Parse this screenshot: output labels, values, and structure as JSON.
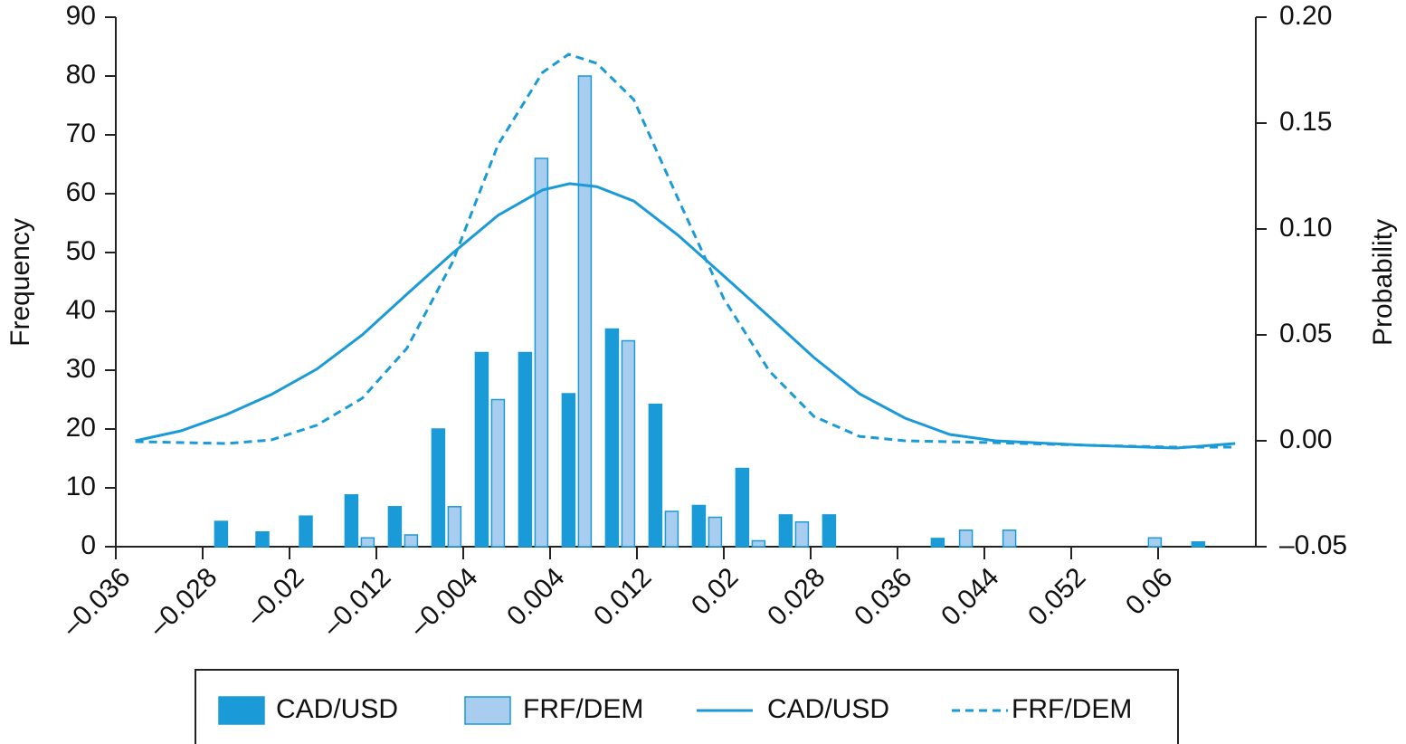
{
  "chart_data": {
    "type": "bar_line",
    "ylabel": "Frequency",
    "y2label": "Probability",
    "xlim": [
      -0.036,
      0.069
    ],
    "xticks": [
      {
        "value": -0.036,
        "label": "–0.036"
      },
      {
        "value": -0.028,
        "label": "–0.028"
      },
      {
        "value": -0.02,
        "label": "–0.02"
      },
      {
        "value": -0.012,
        "label": "–0.012"
      },
      {
        "value": -0.004,
        "label": "–0.004"
      },
      0.004,
      0.012,
      0.02,
      0.028,
      0.036,
      0.044,
      0.052,
      0.06
    ],
    "ylim": [
      0,
      90
    ],
    "yticks": [
      0,
      10,
      20,
      30,
      40,
      50,
      60,
      70,
      80,
      90
    ],
    "y2lim": [
      -0.05,
      0.2
    ],
    "y2ticks": [
      {
        "value": -0.05,
        "label": "–0.05"
      },
      {
        "value": 0,
        "label": "0.00"
      },
      {
        "value": 0.05,
        "label": "0.05"
      },
      {
        "value": 0.1,
        "label": "0.10"
      },
      {
        "value": 0.15,
        "label": "0.15"
      },
      {
        "value": 0.2,
        "label": "0.20"
      }
    ],
    "series": [
      {
        "name": "CAD/USD",
        "kind": "bar",
        "color": "#1a9ad6",
        "x": [
          -0.0263,
          -0.0225,
          -0.0185,
          -0.0143,
          -0.0103,
          -0.0063,
          -0.0023,
          0.0017,
          0.0057,
          0.0097,
          0.0137,
          0.0177,
          0.0217,
          0.0257,
          0.0297,
          0.0397,
          0.0637
        ],
        "values": [
          4.3,
          2.5,
          5.2,
          8.8,
          6.8,
          20,
          33,
          33,
          26,
          37,
          24.2,
          7,
          13.3,
          5.4,
          5.4,
          1.4,
          0.8
        ]
      },
      {
        "name": "FRF/DEM",
        "kind": "bar",
        "color": "#a9cdef",
        "x": [
          -0.0128,
          -0.0088,
          -0.0048,
          -0.0008,
          0.0032,
          0.0072,
          0.0112,
          0.0152,
          0.0192,
          0.0232,
          0.0272,
          0.0423,
          0.0463,
          0.0597
        ],
        "values": [
          1.5,
          2,
          6.8,
          25,
          66,
          80,
          35,
          6,
          5,
          1,
          4.2,
          2.8,
          2.8,
          1.5
        ]
      },
      {
        "name": "CAD/USD",
        "kind": "line",
        "axis": "y2",
        "color": "#1a9ad6",
        "x": [
          -0.0342,
          -0.03,
          -0.0258,
          -0.0217,
          -0.0175,
          -0.0133,
          -0.0092,
          -0.005,
          -0.0008,
          0.0033,
          0.0058,
          0.0083,
          0.0117,
          0.0158,
          0.02,
          0.0242,
          0.0283,
          0.0325,
          0.0367,
          0.0408,
          0.045,
          0.0533,
          0.0617,
          0.0671
        ],
        "values": [
          0,
          0.0047,
          0.0124,
          0.0218,
          0.0338,
          0.05,
          0.0692,
          0.0885,
          0.1064,
          0.1184,
          0.1214,
          0.12,
          0.1132,
          0.097,
          0.0778,
          0.0585,
          0.0393,
          0.0222,
          0.0107,
          0.003,
          0,
          -0.0021,
          -0.0034,
          -0.0013
        ]
      },
      {
        "name": "FRF/DEM",
        "kind": "line",
        "dashed": true,
        "axis": "y2",
        "color": "#1a9ad6",
        "x": [
          -0.0342,
          -0.0258,
          -0.0217,
          -0.0175,
          -0.0133,
          -0.0092,
          -0.005,
          -0.0008,
          0.0033,
          0.0057,
          0.0083,
          0.0117,
          0.0158,
          0.02,
          0.0242,
          0.0283,
          0.0325,
          0.0367,
          0.045,
          0.0533,
          0.0617,
          0.0671
        ],
        "values": [
          -0.0004,
          -0.0013,
          0.0004,
          0.0073,
          0.0201,
          0.0436,
          0.0842,
          0.1397,
          0.1739,
          0.1825,
          0.1782,
          0.1611,
          0.1141,
          0.0671,
          0.0329,
          0.0115,
          0.0021,
          0,
          -0.0009,
          -0.0021,
          -0.003,
          -0.003
        ]
      }
    ]
  }
}
